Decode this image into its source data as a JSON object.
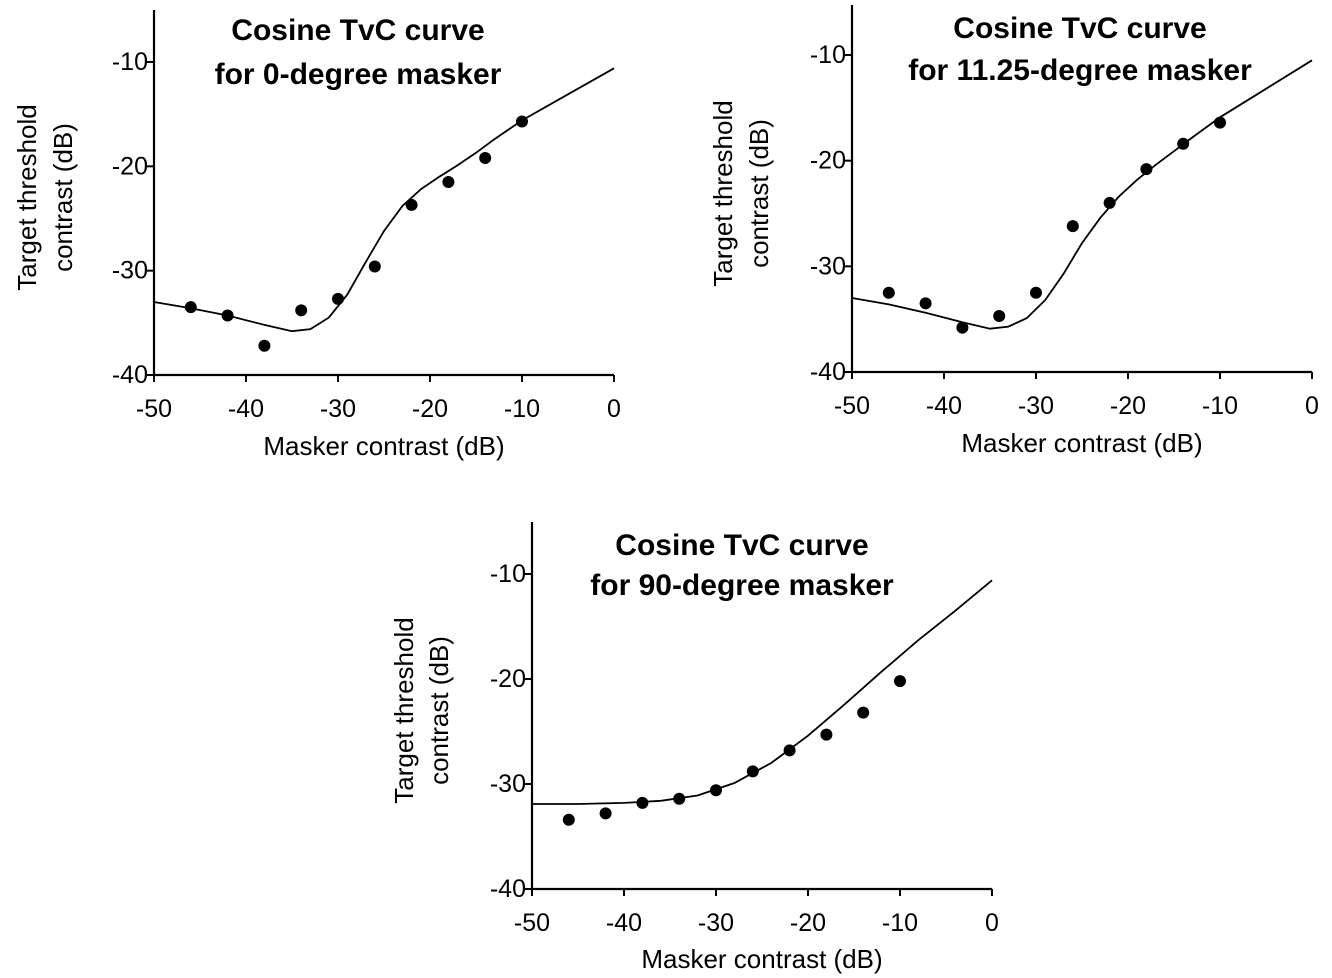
{
  "chart_data": [
    {
      "type": "scatter",
      "title": [
        "Cosine TvC curve",
        "for 0-degree masker"
      ],
      "xlabel": "Masker contrast (dB)",
      "ylabel": [
        "Target threshold",
        "contrast (dB)"
      ],
      "xlim": [
        -50,
        0
      ],
      "ylim": [
        -40,
        -5
      ],
      "xticks": [
        "-50",
        "-40",
        "-30",
        "-20",
        "-10",
        "0"
      ],
      "yticks": [
        "-40",
        "-30",
        "-20",
        "-10"
      ],
      "points": [
        [
          -46,
          -33.5
        ],
        [
          -42,
          -34.3
        ],
        [
          -38,
          -37.2
        ],
        [
          -34,
          -33.8
        ],
        [
          -30,
          -32.7
        ],
        [
          -26,
          -29.6
        ],
        [
          -22,
          -23.7
        ],
        [
          -18,
          -21.5
        ],
        [
          -14,
          -19.2
        ],
        [
          -10,
          -15.7
        ]
      ],
      "curve": [
        [
          -50,
          -33.0
        ],
        [
          -46,
          -33.6
        ],
        [
          -42,
          -34.3
        ],
        [
          -38,
          -35.2
        ],
        [
          -35,
          -35.8
        ],
        [
          -33,
          -35.6
        ],
        [
          -31,
          -34.5
        ],
        [
          -29,
          -32.3
        ],
        [
          -27,
          -29.2
        ],
        [
          -25,
          -26.2
        ],
        [
          -23,
          -23.8
        ],
        [
          -21,
          -22.2
        ],
        [
          -19,
          -21.0
        ],
        [
          -17,
          -19.9
        ],
        [
          -15,
          -18.7
        ],
        [
          -13,
          -17.4
        ],
        [
          -10,
          -15.6
        ],
        [
          -5,
          -13.1
        ],
        [
          0,
          -10.6
        ]
      ]
    },
    {
      "type": "scatter",
      "title": [
        "Cosine TvC curve",
        "for 11.25-degree masker"
      ],
      "xlabel": "Masker contrast (dB)",
      "ylabel": [
        "Target threshold",
        "contrast (dB)"
      ],
      "xlim": [
        -50,
        0
      ],
      "ylim": [
        -40,
        -5
      ],
      "xticks": [
        "-50",
        "-40",
        "-30",
        "-20",
        "-10",
        "0"
      ],
      "yticks": [
        "-40",
        "-30",
        "-20",
        "-10"
      ],
      "points": [
        [
          -46,
          -32.5
        ],
        [
          -42,
          -33.5
        ],
        [
          -38,
          -35.8
        ],
        [
          -34,
          -34.7
        ],
        [
          -30,
          -32.5
        ],
        [
          -26,
          -26.2
        ],
        [
          -22,
          -24.0
        ],
        [
          -18,
          -20.8
        ],
        [
          -14,
          -18.4
        ],
        [
          -10,
          -16.4
        ]
      ],
      "curve": [
        [
          -50,
          -33.0
        ],
        [
          -46,
          -33.6
        ],
        [
          -42,
          -34.4
        ],
        [
          -38,
          -35.3
        ],
        [
          -35,
          -35.9
        ],
        [
          -33,
          -35.7
        ],
        [
          -31,
          -34.9
        ],
        [
          -29,
          -33.2
        ],
        [
          -27,
          -30.7
        ],
        [
          -25,
          -27.8
        ],
        [
          -23,
          -25.4
        ],
        [
          -21,
          -23.4
        ],
        [
          -19,
          -21.8
        ],
        [
          -17,
          -20.4
        ],
        [
          -15,
          -19.1
        ],
        [
          -13,
          -17.8
        ],
        [
          -10,
          -15.9
        ],
        [
          -5,
          -13.2
        ],
        [
          0,
          -10.5
        ]
      ]
    },
    {
      "type": "scatter",
      "title": [
        "Cosine TvC curve",
        "for 90-degree masker"
      ],
      "xlabel": "Masker contrast (dB)",
      "ylabel": [
        "Target threshold",
        "contrast (dB)"
      ],
      "xlim": [
        -50,
        0
      ],
      "ylim": [
        -40,
        -5
      ],
      "xticks": [
        "-50",
        "-40",
        "-30",
        "-20",
        "-10",
        "0"
      ],
      "yticks": [
        "-40",
        "-30",
        "-20",
        "-10"
      ],
      "points": [
        [
          -46,
          -33.4
        ],
        [
          -42,
          -32.8
        ],
        [
          -38,
          -31.8
        ],
        [
          -34,
          -31.4
        ],
        [
          -30,
          -30.6
        ],
        [
          -26,
          -28.8
        ],
        [
          -22,
          -26.8
        ],
        [
          -18,
          -25.3
        ],
        [
          -14,
          -23.2
        ],
        [
          -10,
          -20.2
        ]
      ],
      "curve": [
        [
          -50,
          -31.9
        ],
        [
          -45,
          -31.9
        ],
        [
          -40,
          -31.8
        ],
        [
          -36,
          -31.6
        ],
        [
          -32,
          -31.1
        ],
        [
          -28,
          -29.9
        ],
        [
          -24,
          -28.0
        ],
        [
          -20,
          -25.4
        ],
        [
          -16,
          -22.4
        ],
        [
          -12,
          -19.3
        ],
        [
          -8,
          -16.3
        ],
        [
          -4,
          -13.5
        ],
        [
          0,
          -10.6
        ]
      ]
    }
  ]
}
